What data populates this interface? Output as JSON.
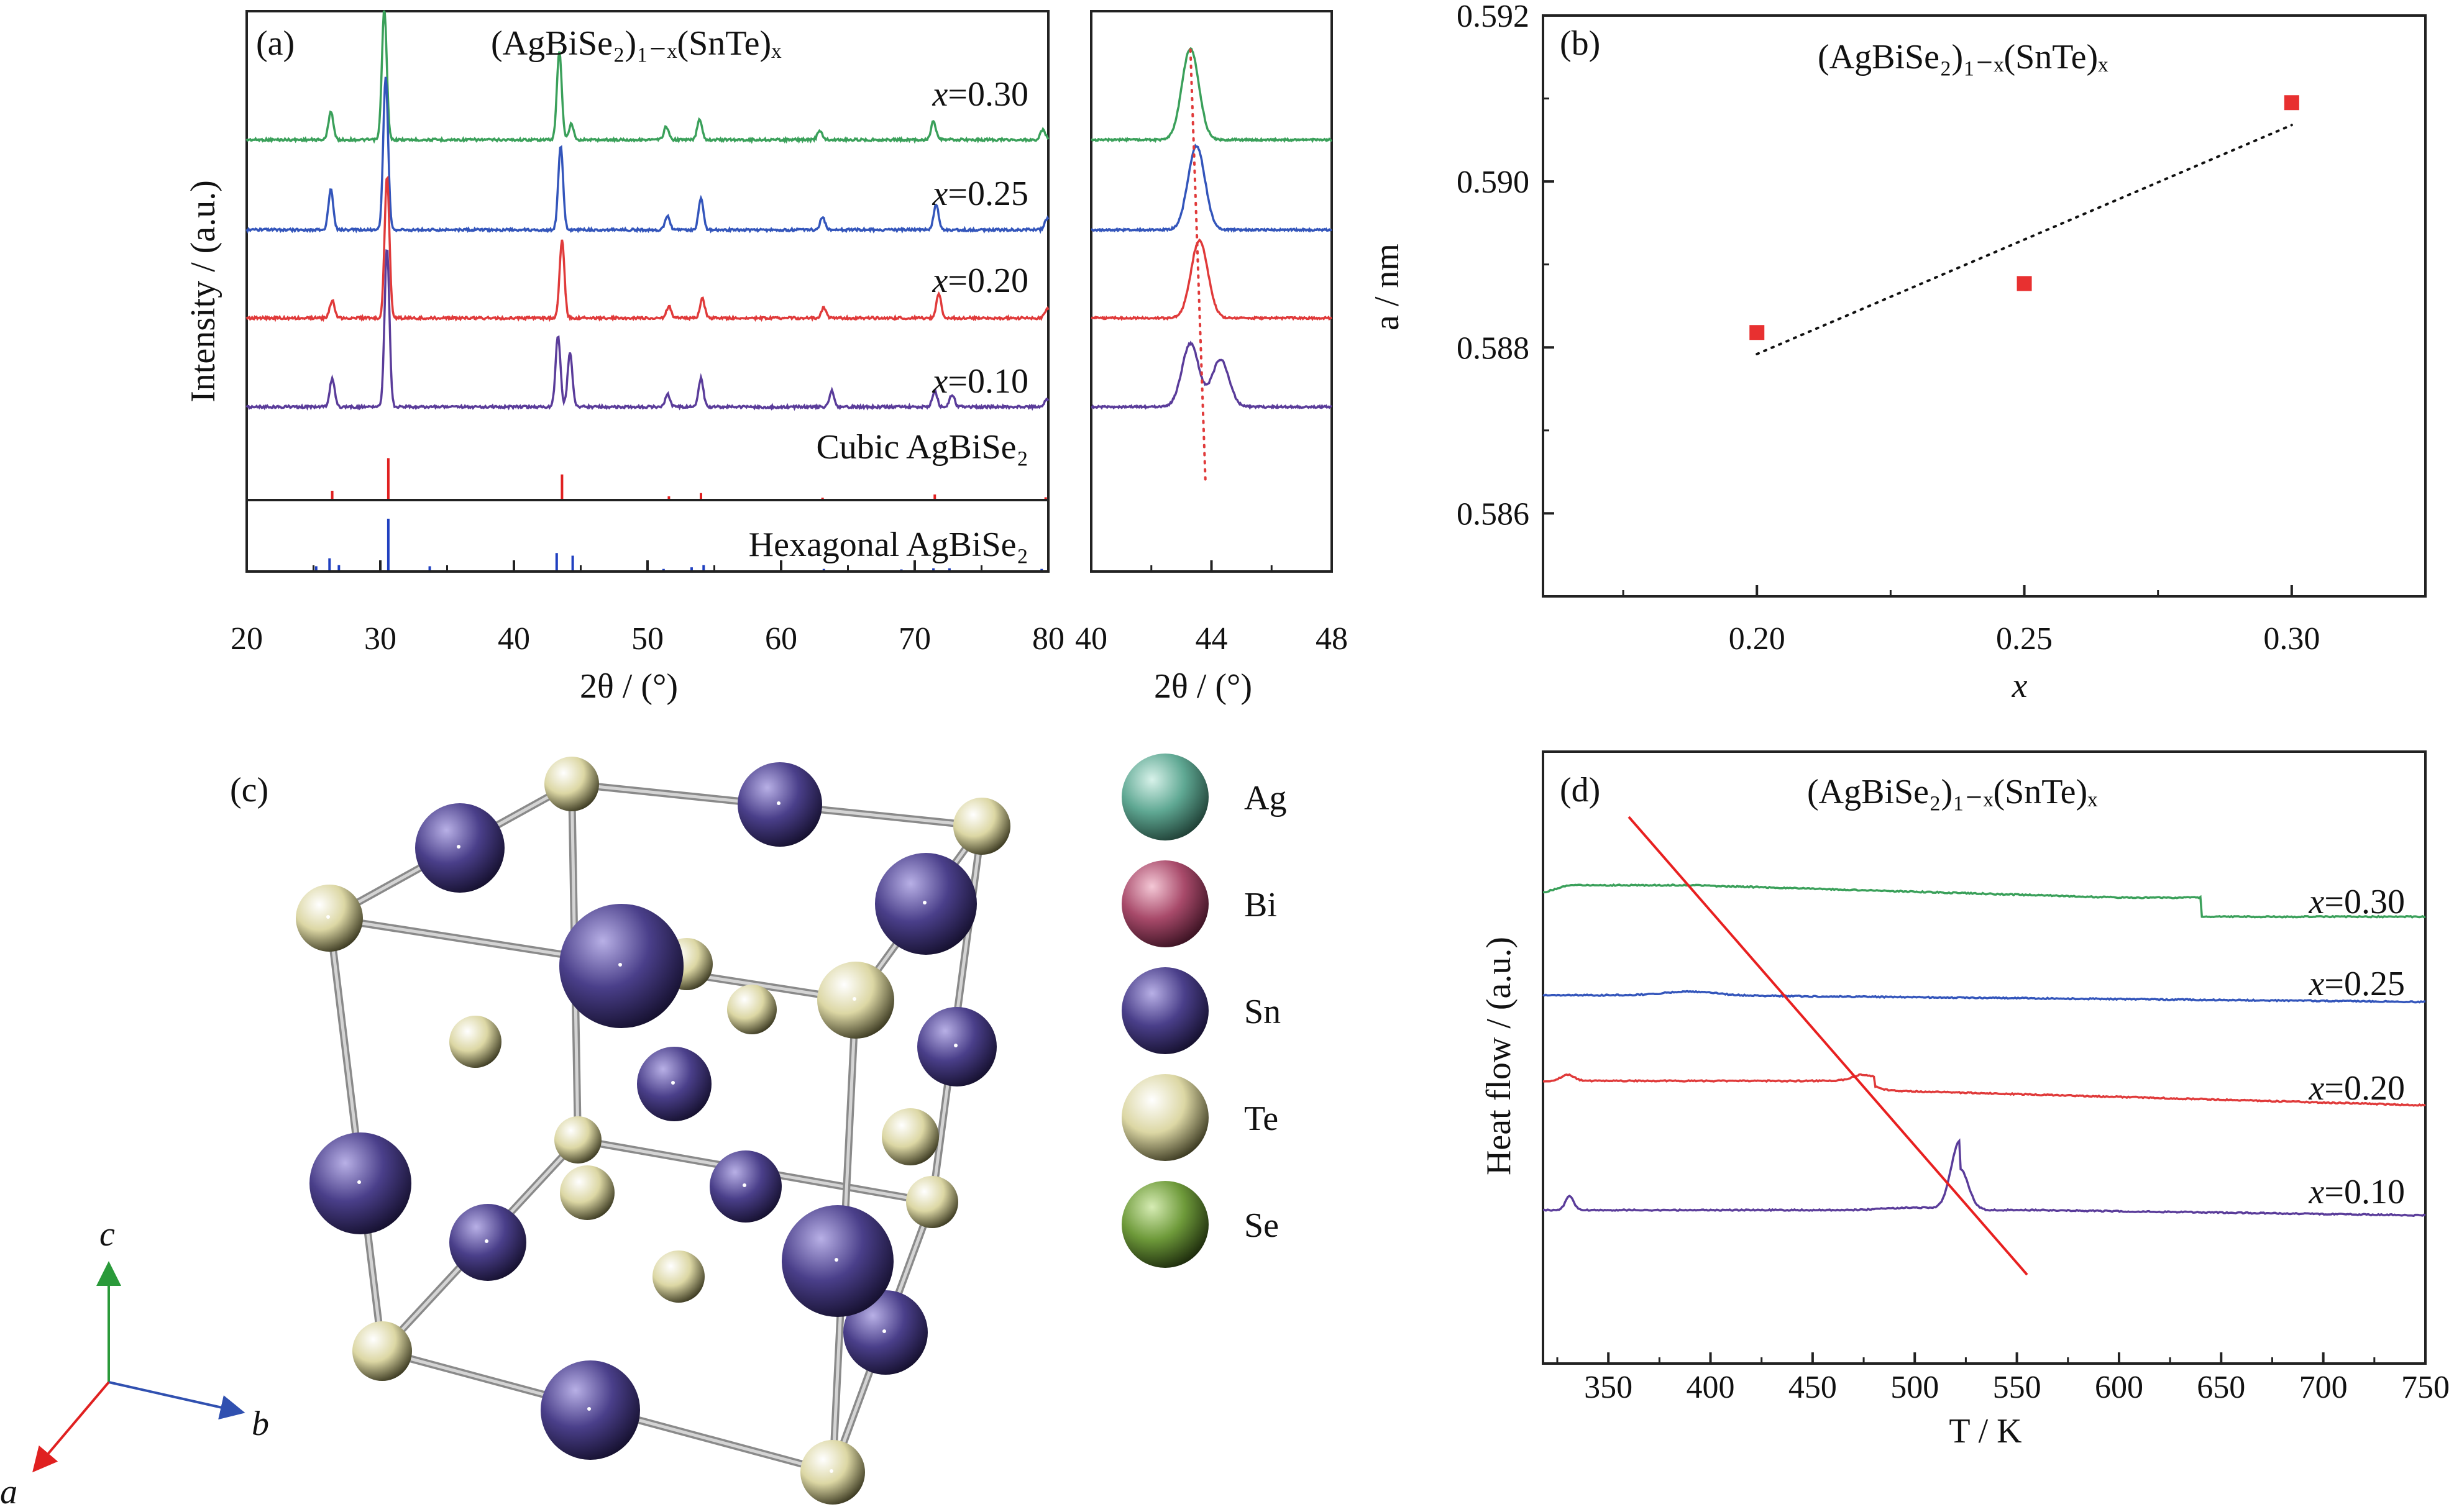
{
  "chart_data": [
    {
      "panel": "a",
      "type": "line",
      "panel_label": "(a)",
      "title": "(AgBiSe₂)₁₋ₓ(SnTe)ₓ",
      "xlabel": "2θ / (°)",
      "ylabel": "Intensity / (a.u.)",
      "xlim": [
        20,
        80
      ],
      "xticks": [
        20,
        30,
        40,
        50,
        60,
        70,
        80
      ],
      "series": [
        {
          "name": "x=0.30",
          "color": "#3aa05a",
          "peaks": [
            [
              26.3,
              0.22
            ],
            [
              30.3,
              1.0
            ],
            [
              43.4,
              0.68
            ],
            [
              44.3,
              0.12
            ],
            [
              51.4,
              0.1
            ],
            [
              53.9,
              0.16
            ],
            [
              62.9,
              0.07
            ],
            [
              71.4,
              0.14
            ],
            [
              79.6,
              0.08
            ]
          ]
        },
        {
          "name": "x=0.25",
          "color": "#3355bb",
          "peaks": [
            [
              26.3,
              0.25
            ],
            [
              30.4,
              0.95
            ],
            [
              43.5,
              0.52
            ],
            [
              51.5,
              0.09
            ],
            [
              54.0,
              0.2
            ],
            [
              63.1,
              0.08
            ],
            [
              71.6,
              0.16
            ],
            [
              79.9,
              0.07
            ]
          ]
        },
        {
          "name": "x=0.20",
          "color": "#e03a3a",
          "peaks": [
            [
              26.4,
              0.12
            ],
            [
              30.5,
              0.95
            ],
            [
              43.6,
              0.52
            ],
            [
              51.6,
              0.08
            ],
            [
              54.1,
              0.13
            ],
            [
              63.2,
              0.07
            ],
            [
              71.8,
              0.16
            ],
            [
              79.9,
              0.06
            ]
          ]
        },
        {
          "name": "x=0.10",
          "color": "#5a3c9a",
          "peaks": [
            [
              26.4,
              0.18
            ],
            [
              30.5,
              1.0
            ],
            [
              43.3,
              0.45
            ],
            [
              44.2,
              0.34
            ],
            [
              51.5,
              0.08
            ],
            [
              54.0,
              0.18
            ],
            [
              63.8,
              0.1
            ],
            [
              71.5,
              0.1
            ],
            [
              72.8,
              0.08
            ],
            [
              79.9,
              0.05
            ]
          ]
        }
      ],
      "series_labels": [
        "x=0.30",
        "x=0.25",
        "x=0.20",
        "x=0.10"
      ],
      "references": [
        {
          "name": "Cubic AgBiSe₂",
          "color": "#e02020",
          "lines": [
            [
              26.4,
              0.2
            ],
            [
              30.6,
              0.9
            ],
            [
              43.6,
              0.55
            ],
            [
              51.6,
              0.08
            ],
            [
              54.0,
              0.15
            ],
            [
              63.1,
              0.05
            ],
            [
              71.5,
              0.12
            ],
            [
              79.8,
              0.06
            ]
          ]
        },
        {
          "name": "Hexagonal AgBiSe₂",
          "color": "#2040c0",
          "lines": [
            [
              25.2,
              0.1
            ],
            [
              26.2,
              0.25
            ],
            [
              26.9,
              0.12
            ],
            [
              30.6,
              1.0
            ],
            [
              33.7,
              0.1
            ],
            [
              43.2,
              0.35
            ],
            [
              44.4,
              0.3
            ],
            [
              51.2,
              0.05
            ],
            [
              53.3,
              0.08
            ],
            [
              54.2,
              0.12
            ],
            [
              63.2,
              0.05
            ],
            [
              69.0,
              0.04
            ],
            [
              71.4,
              0.06
            ],
            [
              72.6,
              0.06
            ],
            [
              79.5,
              0.05
            ]
          ]
        }
      ]
    },
    {
      "panel": "a-zoom",
      "type": "line",
      "xlabel": "2θ / (°)",
      "xlim": [
        40,
        48
      ],
      "xticks": [
        40,
        44,
        48
      ],
      "guide": {
        "style": "dotted",
        "color": "#e03a3a",
        "x_top": 43.3,
        "x_bottom": 43.8
      },
      "series": [
        {
          "name": "x=0.30",
          "color": "#3aa05a",
          "peaks": [
            [
              43.3,
              0.7
            ]
          ]
        },
        {
          "name": "x=0.25",
          "color": "#3355bb",
          "peaks": [
            [
              43.5,
              0.52
            ]
          ]
        },
        {
          "name": "x=0.20",
          "color": "#e03a3a",
          "peaks": [
            [
              43.6,
              0.52
            ]
          ]
        },
        {
          "name": "x=0.10",
          "color": "#5a3c9a",
          "peaks": [
            [
              43.3,
              0.4
            ],
            [
              44.3,
              0.3
            ]
          ]
        }
      ]
    },
    {
      "panel": "b",
      "type": "scatter",
      "panel_label": "(b)",
      "title": "(AgBiSe₂)₁₋ₓ(SnTe)ₓ",
      "xlabel": "x",
      "ylabel": "a / nm",
      "xlim": [
        0.16,
        0.325
      ],
      "ylim": [
        0.585,
        0.592
      ],
      "xticks": [
        "0.20",
        "0.25",
        "0.30"
      ],
      "yticks": [
        "0.586",
        "0.588",
        "0.590",
        "0.592"
      ],
      "points": [
        [
          0.2,
          0.58818
        ],
        [
          0.25,
          0.58877
        ],
        [
          0.3,
          0.59095
        ]
      ],
      "marker_color": "#e83030",
      "fit_line": {
        "style": "dotted",
        "x": [
          0.2,
          0.3
        ],
        "y": [
          0.58792,
          0.59068
        ]
      }
    },
    {
      "panel": "c",
      "type": "diagram",
      "panel_label": "(c)",
      "legend": [
        {
          "label": "Ag",
          "color": "#5fa893"
        },
        {
          "label": "Bi",
          "color": "#a84a6a"
        },
        {
          "label": "Sn",
          "color": "#4a3f8a"
        },
        {
          "label": "Te",
          "color": "#dcd7a4"
        },
        {
          "label": "Se",
          "color": "#6e9a3a"
        }
      ],
      "axes_labels": {
        "a": "a",
        "b": "b",
        "c": "c"
      }
    },
    {
      "panel": "d",
      "type": "line",
      "panel_label": "(d)",
      "title": "(AgBiSe₂)₁₋ₓ(SnTe)ₓ",
      "xlabel": "T / K",
      "ylabel": "Heat flow / (a.u.)",
      "xlim": [
        318,
        750
      ],
      "xticks": [
        350,
        400,
        450,
        500,
        550,
        600,
        650,
        700,
        750
      ],
      "series": [
        {
          "name": "x=0.30",
          "color": "#3aa05a"
        },
        {
          "name": "x=0.25",
          "color": "#3355bb"
        },
        {
          "name": "x=0.20",
          "color": "#e03a3a"
        },
        {
          "name": "x=0.10",
          "color": "#5a3c9a"
        }
      ],
      "series_labels": [
        "x=0.30",
        "x=0.25",
        "x=0.20",
        "x=0.10"
      ],
      "trend_line": {
        "color": "#e82020",
        "x": [
          360,
          555
        ]
      }
    }
  ]
}
